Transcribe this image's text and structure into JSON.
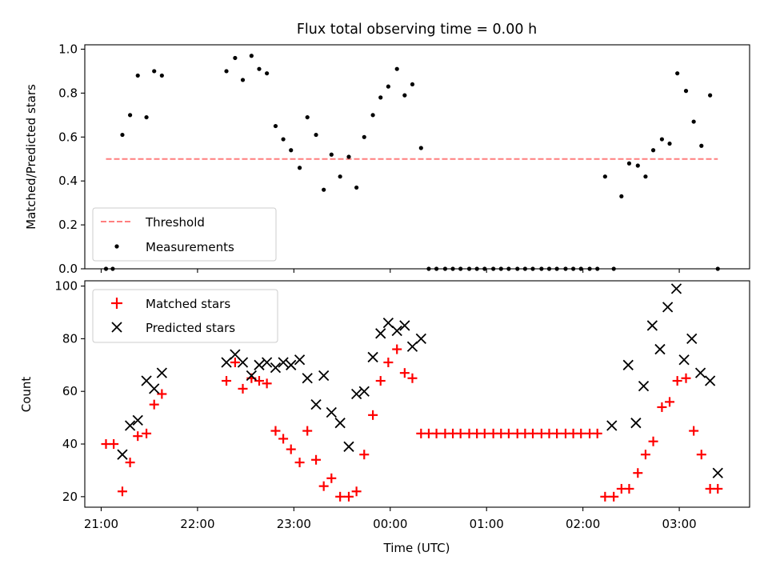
{
  "figure": {
    "title": "Flux total observing time = 0.00 h"
  },
  "chart_data": [
    {
      "type": "scatter",
      "title": "Flux total observing time = 0.00 h",
      "xlabel": "",
      "ylabel": "Matched/Predicted stars",
      "xlim_hours": [
        20.83,
        27.73
      ],
      "ylim": [
        0,
        1.02
      ],
      "yticks": [
        0.0,
        0.2,
        0.4,
        0.6,
        0.8,
        1.0
      ],
      "ytick_labels": [
        "0.0",
        "0.2",
        "0.4",
        "0.6",
        "0.8",
        "1.0"
      ],
      "legend_position": "lower-left",
      "threshold": {
        "name": "Threshold",
        "value": 0.5,
        "x_start": 21.05,
        "x_end": 27.4,
        "color": "#ff7f7f",
        "style": "dashed"
      },
      "series": [
        {
          "name": "Measurements",
          "color": "#000000",
          "marker": "dot",
          "x": [
            21.05,
            21.12,
            21.22,
            21.3,
            21.38,
            21.47,
            21.55,
            21.63,
            22.3,
            22.39,
            22.47,
            22.56,
            22.64,
            22.72,
            22.81,
            22.89,
            22.97,
            23.06,
            23.14,
            23.23,
            23.31,
            23.39,
            23.48,
            23.57,
            23.65,
            23.73,
            23.82,
            23.9,
            23.98,
            24.07,
            24.15,
            24.23,
            24.32,
            24.4,
            24.48,
            24.57,
            24.65,
            24.73,
            24.82,
            24.9,
            24.98,
            25.07,
            25.15,
            25.23,
            25.32,
            25.4,
            25.48,
            25.57,
            25.65,
            25.73,
            25.82,
            25.9,
            25.98,
            26.07,
            26.15,
            26.23,
            26.32,
            26.4,
            26.48,
            26.57,
            26.65,
            26.73,
            26.82,
            26.9,
            26.98,
            27.07,
            27.15,
            27.23,
            27.32,
            27.4
          ],
          "y": [
            0.0,
            0.0,
            0.61,
            0.7,
            0.88,
            0.69,
            0.9,
            0.88,
            0.9,
            0.96,
            0.86,
            0.97,
            0.91,
            0.89,
            0.65,
            0.59,
            0.54,
            0.46,
            0.69,
            0.61,
            0.36,
            0.52,
            0.42,
            0.51,
            0.37,
            0.6,
            0.7,
            0.78,
            0.83,
            0.91,
            0.79,
            0.84,
            0.55,
            0.0,
            0.0,
            0.0,
            0.0,
            0.0,
            0.0,
            0.0,
            0.0,
            0.0,
            0.0,
            0.0,
            0.0,
            0.0,
            0.0,
            0.0,
            0.0,
            0.0,
            0.0,
            0.0,
            0.0,
            0.0,
            0.0,
            0.42,
            0.0,
            0.33,
            0.48,
            0.47,
            0.42,
            0.54,
            0.59,
            0.57,
            0.89,
            0.81,
            0.67,
            0.56,
            0.79,
            0.0
          ]
        }
      ]
    },
    {
      "type": "scatter",
      "title": "",
      "xlabel": "Time (UTC)",
      "ylabel": "Count",
      "xlim_hours": [
        20.83,
        27.73
      ],
      "ylim": [
        16,
        102
      ],
      "yticks": [
        20,
        40,
        60,
        80,
        100
      ],
      "ytick_labels": [
        "20",
        "40",
        "60",
        "80",
        "100"
      ],
      "xticks_hours": [
        21,
        22,
        23,
        24,
        25,
        26,
        27
      ],
      "xtick_labels": [
        "21:00",
        "22:00",
        "23:00",
        "00:00",
        "01:00",
        "02:00",
        "03:00"
      ],
      "legend_position": "upper-left",
      "series": [
        {
          "name": "Matched stars",
          "color": "#ff0000",
          "marker": "plus",
          "x": [
            21.05,
            21.13,
            21.22,
            21.3,
            21.38,
            21.47,
            21.55,
            21.63,
            22.3,
            22.39,
            22.47,
            22.56,
            22.64,
            22.72,
            22.81,
            22.89,
            22.97,
            23.06,
            23.14,
            23.23,
            23.31,
            23.39,
            23.48,
            23.57,
            23.65,
            23.73,
            23.82,
            23.9,
            23.98,
            24.07,
            24.15,
            24.23,
            24.32,
            24.4,
            24.48,
            24.57,
            24.65,
            24.73,
            24.82,
            24.9,
            24.98,
            25.07,
            25.15,
            25.23,
            25.32,
            25.4,
            25.48,
            25.57,
            25.65,
            25.73,
            25.82,
            25.9,
            25.98,
            26.07,
            26.15,
            26.23,
            26.32,
            26.4,
            26.48,
            26.57,
            26.65,
            26.73,
            26.82,
            26.9,
            26.98,
            27.07,
            27.15,
            27.23,
            27.32,
            27.4
          ],
          "y": [
            40,
            40,
            22,
            33,
            43,
            44,
            55,
            59,
            64,
            71,
            61,
            65,
            64,
            63,
            45,
            42,
            38,
            33,
            45,
            34,
            24,
            27,
            20,
            20,
            22,
            36,
            51,
            64,
            71,
            76,
            67,
            65,
            44,
            44,
            44,
            44,
            44,
            44,
            44,
            44,
            44,
            44,
            44,
            44,
            44,
            44,
            44,
            44,
            44,
            44,
            44,
            44,
            44,
            44,
            44,
            20,
            20,
            23,
            23,
            29,
            36,
            41,
            54,
            56,
            64,
            65,
            45,
            36,
            23,
            23
          ]
        },
        {
          "name": "Predicted stars",
          "color": "#000000",
          "marker": "x",
          "x": [
            21.22,
            21.3,
            21.38,
            21.47,
            21.55,
            21.63,
            22.3,
            22.39,
            22.47,
            22.56,
            22.64,
            22.72,
            22.81,
            22.89,
            22.97,
            23.06,
            23.14,
            23.23,
            23.31,
            23.39,
            23.48,
            23.57,
            23.65,
            23.73,
            23.82,
            23.9,
            23.98,
            24.07,
            24.15,
            24.23,
            24.32,
            26.3,
            26.47,
            26.55,
            26.63,
            26.72,
            26.8,
            26.88,
            26.97,
            27.05,
            27.13,
            27.22,
            27.32,
            27.4
          ],
          "y": [
            36,
            47,
            49,
            64,
            61,
            67,
            71,
            74,
            71,
            66,
            70,
            71,
            69,
            71,
            70,
            72,
            65,
            55,
            66,
            52,
            48,
            39,
            59,
            60,
            73,
            82,
            86,
            83,
            85,
            77,
            80,
            47,
            70,
            48,
            62,
            85,
            76,
            92,
            99,
            72,
            80,
            67,
            64,
            29
          ]
        }
      ]
    }
  ]
}
